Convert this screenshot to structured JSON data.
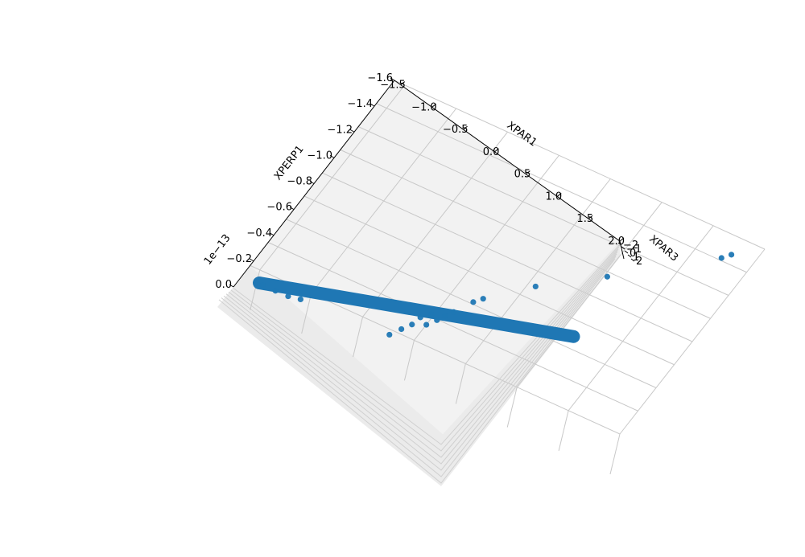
{
  "chart_data": {
    "type": "scatter",
    "projection": "3d",
    "title": "",
    "xlabel": "XPAR1",
    "ylabel": "XPERP1",
    "zlabel": "XPAR3",
    "y_offset_label": "1e−13",
    "xlim": [
      -1.6,
      2.0
    ],
    "ylim": [
      -1.6,
      0.0
    ],
    "zlim": [
      -2,
      2
    ],
    "x_ticks": [
      "−1.5",
      "−1.0",
      "−0.5",
      "0.0",
      "0.5",
      "1.0",
      "1.5",
      "2.0"
    ],
    "y_ticks": [
      "−1.6",
      "−1.4",
      "−1.2",
      "−1.0",
      "−0.8",
      "−0.6",
      "−0.4",
      "−0.2",
      "0.0"
    ],
    "z_ticks": [
      "−2",
      "−1",
      "0",
      "1",
      "2"
    ],
    "grid": true,
    "marker_color": "#1f77b4",
    "pane_color": "#f2f2f2",
    "band": {
      "description": "dense cluster of points along XPAR1 at XPERP1 = 0",
      "x_range": [
        -1.6,
        -0.25
      ],
      "y": 0.0
    },
    "series": [
      {
        "points": [
          {
            "x": -1.55,
            "y": 0.0,
            "z": 0.0
          },
          {
            "x": -1.45,
            "y": 0.0,
            "z": 0.5
          },
          {
            "x": -1.35,
            "y": 0.0,
            "z": 1.0
          },
          {
            "x": -1.2,
            "y": -0.02,
            "z": 0.0
          },
          {
            "x": -0.4,
            "y": -0.05,
            "z": 0.8
          },
          {
            "x": -0.35,
            "y": -0.12,
            "z": 0.9
          },
          {
            "x": -0.3,
            "y": -0.18,
            "z": 0.9
          },
          {
            "x": -0.28,
            "y": -0.25,
            "z": 0.9
          },
          {
            "x": -0.22,
            "y": -0.3,
            "z": 0.95
          },
          {
            "x": -0.2,
            "y": -0.22,
            "z": 1.0
          },
          {
            "x": -0.15,
            "y": -0.28,
            "z": 1.0
          },
          {
            "x": -0.12,
            "y": -0.33,
            "z": 1.05
          },
          {
            "x": -0.08,
            "y": -0.38,
            "z": 1.1
          },
          {
            "x": 0.0,
            "y": -0.5,
            "z": 1.2
          },
          {
            "x": 0.05,
            "y": -0.55,
            "z": 1.25
          },
          {
            "x": 0.35,
            "y": -0.78,
            "z": 1.4
          },
          {
            "x": 0.8,
            "y": -1.05,
            "z": 1.6
          },
          {
            "x": 1.5,
            "y": -1.5,
            "z": 1.9
          },
          {
            "x": 1.55,
            "y": -1.55,
            "z": 1.95
          }
        ]
      }
    ]
  }
}
